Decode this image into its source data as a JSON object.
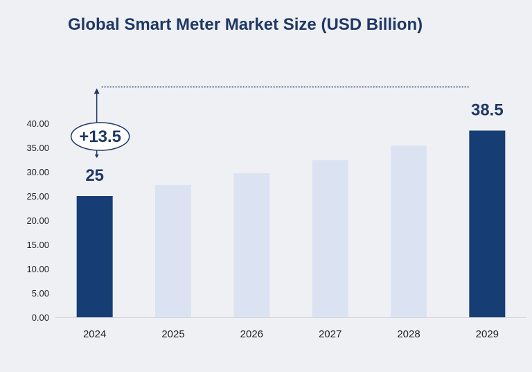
{
  "chart_data": {
    "type": "bar",
    "title": "Global Smart Meter Market Size (USD Billion)",
    "categories": [
      "2024",
      "2025",
      "2026",
      "2027",
      "2028",
      "2029"
    ],
    "values": [
      25,
      27.3,
      29.7,
      32.4,
      35.4,
      38.5
    ],
    "ylim": [
      0,
      40
    ],
    "yticks": [
      "0.00",
      "5.00",
      "10.00",
      "15.00",
      "20.00",
      "25.00",
      "30.00",
      "35.00",
      "40.00"
    ],
    "data_labels": [
      {
        "category": "2024",
        "text": "25"
      },
      {
        "category": "2029",
        "text": "38.5"
      }
    ],
    "growth_annotation": "+13.5",
    "highlighted_categories": [
      "2024",
      "2029"
    ],
    "grid": false,
    "colors": {
      "highlight_bar": "#163e74",
      "regular_bar": "#dbe3f3",
      "text": "#1f3864"
    }
  }
}
